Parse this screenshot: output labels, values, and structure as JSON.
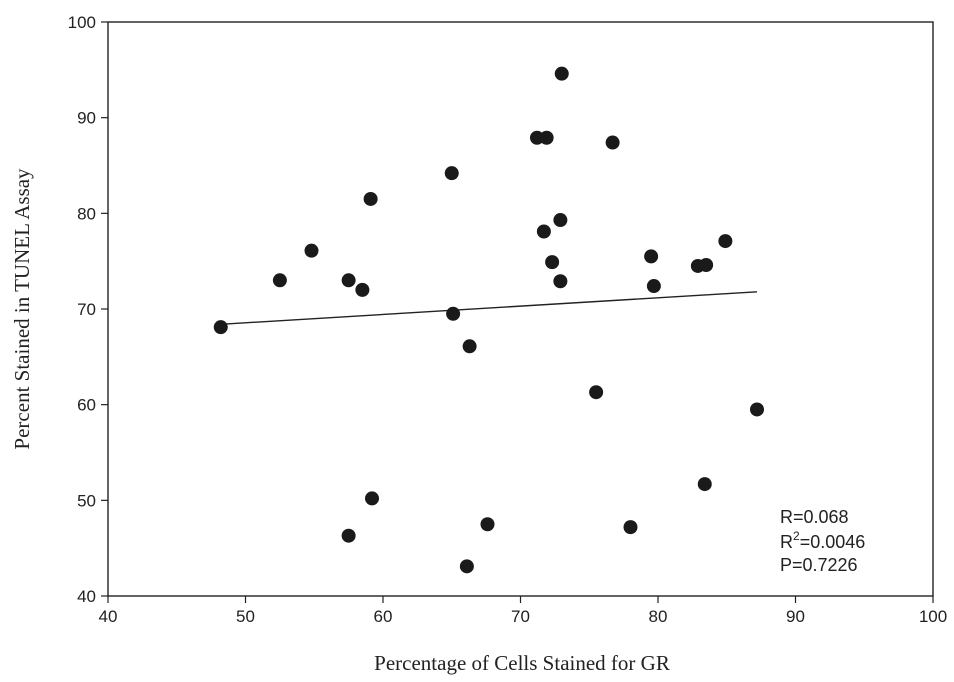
{
  "chart_data": {
    "type": "scatter",
    "xlabel": "Percentage of Cells Stained for GR",
    "ylabel": "Percent Stained in TUNEL Assay",
    "xlim": [
      40,
      100
    ],
    "ylim": [
      40,
      100
    ],
    "xticks": [
      40,
      50,
      60,
      70,
      80,
      90,
      100
    ],
    "yticks": [
      40,
      50,
      60,
      70,
      80,
      90,
      100
    ],
    "grid": false,
    "points": [
      {
        "x": 48.2,
        "y": 68.1
      },
      {
        "x": 52.5,
        "y": 73.0
      },
      {
        "x": 54.8,
        "y": 76.1
      },
      {
        "x": 57.5,
        "y": 73.0
      },
      {
        "x": 58.5,
        "y": 72.0
      },
      {
        "x": 59.1,
        "y": 81.5
      },
      {
        "x": 57.5,
        "y": 46.3
      },
      {
        "x": 59.2,
        "y": 50.2
      },
      {
        "x": 65.0,
        "y": 84.2
      },
      {
        "x": 65.1,
        "y": 69.5
      },
      {
        "x": 66.3,
        "y": 66.1
      },
      {
        "x": 66.1,
        "y": 43.1
      },
      {
        "x": 67.6,
        "y": 47.5
      },
      {
        "x": 71.2,
        "y": 87.9
      },
      {
        "x": 71.9,
        "y": 87.9
      },
      {
        "x": 73.0,
        "y": 94.6
      },
      {
        "x": 71.7,
        "y": 78.1
      },
      {
        "x": 72.9,
        "y": 79.3
      },
      {
        "x": 72.3,
        "y": 74.9
      },
      {
        "x": 72.9,
        "y": 72.9
      },
      {
        "x": 76.7,
        "y": 87.4
      },
      {
        "x": 75.5,
        "y": 61.3
      },
      {
        "x": 78.0,
        "y": 47.2
      },
      {
        "x": 79.5,
        "y": 75.5
      },
      {
        "x": 79.7,
        "y": 72.4
      },
      {
        "x": 82.9,
        "y": 74.5
      },
      {
        "x": 83.5,
        "y": 74.6
      },
      {
        "x": 84.9,
        "y": 77.1
      },
      {
        "x": 83.4,
        "y": 51.7
      },
      {
        "x": 87.2,
        "y": 59.5
      }
    ],
    "trendline": {
      "x": [
        48.2,
        87.2
      ],
      "y": [
        68.4,
        71.8
      ]
    },
    "annotations": {
      "r": "R=0.068",
      "r2_prefix": "R",
      "r2_sup": "2",
      "r2_suffix": "=0.0046",
      "p": "P=0.7226"
    }
  }
}
